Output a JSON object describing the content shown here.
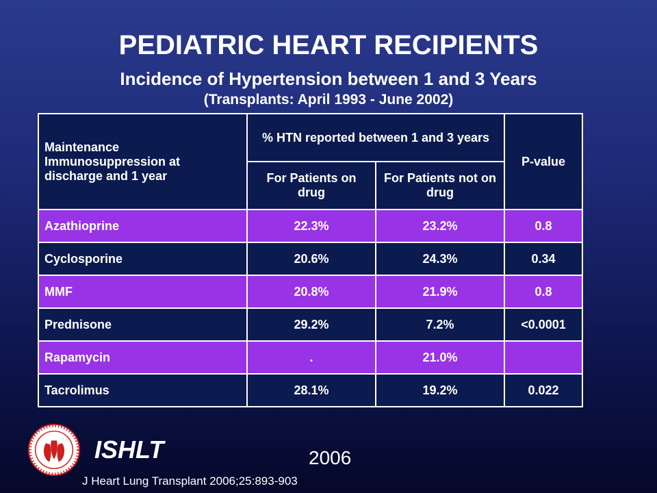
{
  "header": {
    "title": "PEDIATRIC HEART RECIPIENTS",
    "subtitle": "Incidence of Hypertension between 1 and 3 Years",
    "subtitle2": "(Transplants: April 1993 - June 2002)"
  },
  "table": {
    "col_main": "Maintenance Immunosuppression at discharge and 1 year",
    "col_group": "% HTN reported between 1 and 3 years",
    "col_on_drug": "For Patients on drug",
    "col_not_on_drug": "For Patients not on drug",
    "col_pvalue": "P-value",
    "rows": [
      {
        "drug": "Azathioprine",
        "on": "22.3%",
        "off": "23.2%",
        "p": "0.8"
      },
      {
        "drug": "Cyclosporine",
        "on": "20.6%",
        "off": "24.3%",
        "p": "0.34"
      },
      {
        "drug": "MMF",
        "on": "20.8%",
        "off": "21.9%",
        "p": "0.8"
      },
      {
        "drug": "Prednisone",
        "on": "29.2%",
        "off": "7.2%",
        "p": "<0.0001"
      },
      {
        "drug": "Rapamycin",
        "on": ".",
        "off": "21.0%",
        "p": ""
      },
      {
        "drug": "Tacrolimus",
        "on": "28.1%",
        "off": "19.2%",
        "p": "0.022"
      }
    ]
  },
  "footer": {
    "org": "ISHLT",
    "year": "2006",
    "citation": "J Heart Lung Transplant 2006;25:893-903"
  },
  "colors": {
    "header_bg": "#0b1b4f",
    "row_purple": "#9933e6",
    "row_navy": "#0b1b4f",
    "main_header_text": "#ffff33",
    "logo_red": "#cc1f1f"
  },
  "icons": {
    "logo": "ishlt-seal-icon"
  }
}
